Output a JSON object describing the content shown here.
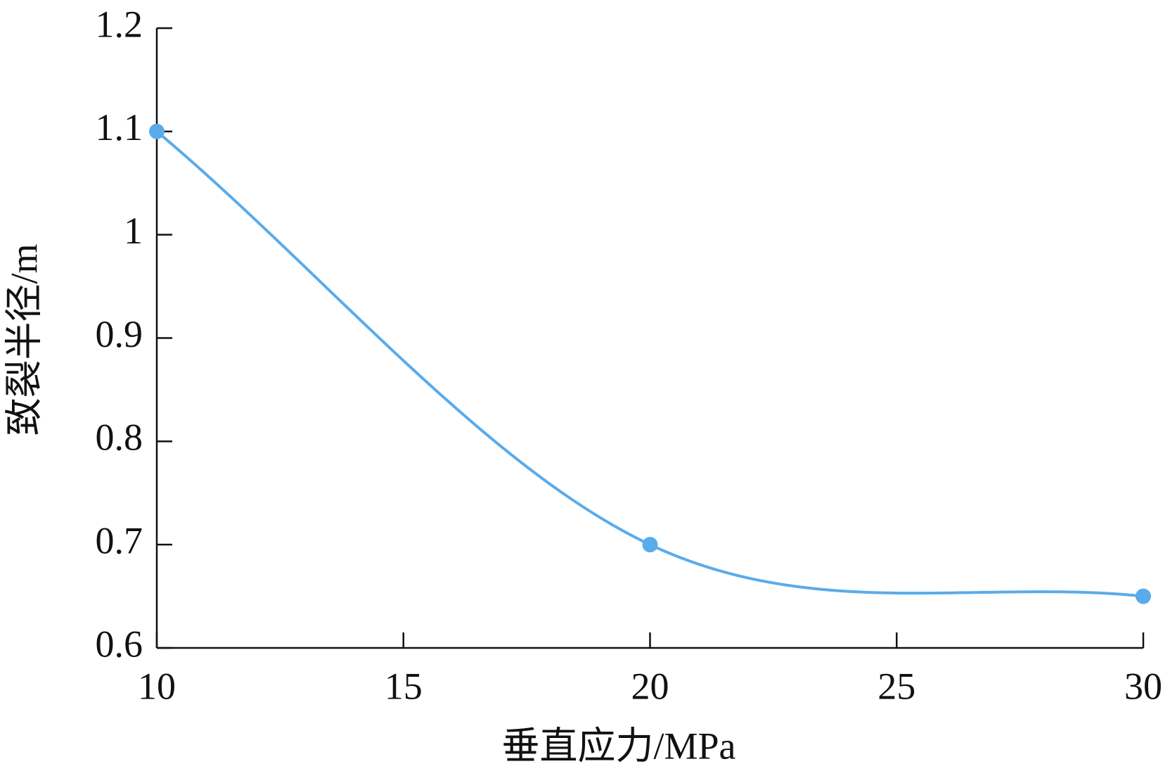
{
  "chart_data": {
    "type": "line",
    "x_label": "垂直应力/MPa",
    "y_label": "致裂半径/m",
    "x": [
      10,
      20,
      30
    ],
    "series": [
      {
        "name": "致裂半径",
        "color": "#5aabea",
        "values": [
          1.1,
          0.7,
          0.65
        ]
      }
    ],
    "xlim": [
      10,
      30
    ],
    "xticks": [
      10,
      15,
      20,
      25,
      30
    ],
    "ylim": [
      0.6,
      1.2
    ],
    "yticks": [
      0.6,
      0.7,
      0.8,
      0.9,
      1,
      1.1,
      1.2
    ],
    "grid": false,
    "smooth": true
  }
}
